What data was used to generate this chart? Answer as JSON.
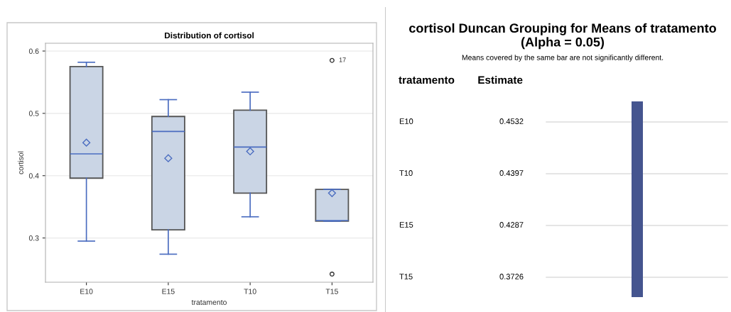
{
  "chart_data": [
    {
      "type": "box",
      "title": "Distribution of cortisol",
      "xlabel": "tratamento",
      "ylabel": "cortisol",
      "categories": [
        "E10",
        "E15",
        "T10",
        "T15"
      ],
      "boxes": [
        {
          "low": 0.295,
          "q1": 0.396,
          "median": 0.435,
          "q3": 0.575,
          "high": 0.582,
          "mean": 0.453
        },
        {
          "low": 0.274,
          "q1": 0.313,
          "median": 0.471,
          "q3": 0.495,
          "high": 0.522,
          "mean": 0.428
        },
        {
          "low": 0.334,
          "q1": 0.372,
          "median": 0.446,
          "q3": 0.505,
          "high": 0.534,
          "mean": 0.439
        },
        {
          "low": 0.327,
          "q1": 0.327,
          "median": 0.328,
          "q3": 0.378,
          "high": 0.378,
          "mean": 0.372,
          "outliers": [
            0.585,
            0.242
          ]
        }
      ],
      "color": "#cad5e5",
      "ylim": [
        0.229,
        0.6125
      ],
      "yticks": [
        0.3,
        0.4,
        0.5,
        0.6
      ],
      "grid": "y",
      "annotations": [
        "17"
      ]
    },
    {
      "type": "other",
      "title": "cortisol Duncan Grouping for Means of tratamento (Alpha = 0.05)",
      "subtitle": "Means covered by the same bar are not significantly different.",
      "xlabel": "tratamento",
      "ylabel": "Estimate",
      "categories": [
        "E10",
        "T10",
        "E15",
        "T15"
      ],
      "values": [
        0.4532,
        0.4397,
        0.4287,
        0.3726
      ],
      "data_labels": true,
      "color": "#45558f"
    }
  ]
}
